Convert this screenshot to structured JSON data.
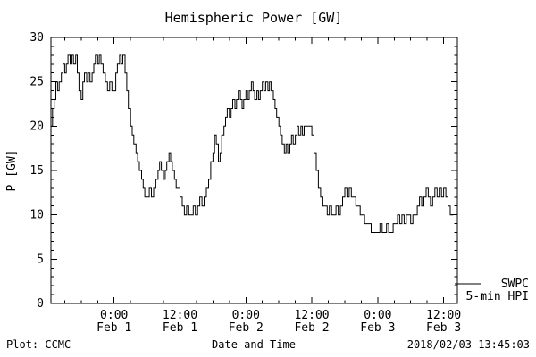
{
  "title": "Hemispheric Power [GW]",
  "legend": {
    "line1": "SWPC",
    "line2": "5-min HPI"
  },
  "footer": {
    "left": "Plot: CCMC",
    "center": "Date and Time",
    "right": "2018/02/03 13:45:03"
  },
  "chart_data": {
    "type": "line",
    "title": "Hemispheric Power [GW]",
    "xlabel": "Date and Time",
    "ylabel": "P [GW]",
    "legend_entries": [
      "SWPC",
      "5-min HPI"
    ],
    "legend_position": "right-outside",
    "grid": false,
    "x_unit": "hours relative to 2018-02-01 00:00 UT",
    "xlim": [
      -11.5,
      62.5
    ],
    "ylim": [
      0,
      30
    ],
    "yticks": [
      0,
      5,
      10,
      15,
      20,
      25,
      30
    ],
    "xticks": [
      {
        "t": 0,
        "time": "0:00",
        "date": "Feb 1"
      },
      {
        "t": 12,
        "time": "12:00",
        "date": "Feb 1"
      },
      {
        "t": 24,
        "time": "0:00",
        "date": "Feb 2"
      },
      {
        "t": 36,
        "time": "12:00",
        "date": "Feb 2"
      },
      {
        "t": 48,
        "time": "0:00",
        "date": "Feb 3"
      },
      {
        "t": 60,
        "time": "12:00",
        "date": "Feb 3"
      }
    ],
    "series": [
      {
        "name": "SWPC 5-min HPI",
        "points": [
          [
            -11.5,
            20
          ],
          [
            -11.2,
            22
          ],
          [
            -10.9,
            23
          ],
          [
            -10.6,
            25
          ],
          [
            -10.3,
            24
          ],
          [
            -10.0,
            25
          ],
          [
            -9.6,
            26
          ],
          [
            -9.3,
            27
          ],
          [
            -9.0,
            26
          ],
          [
            -8.7,
            27
          ],
          [
            -8.4,
            28
          ],
          [
            -8.0,
            27
          ],
          [
            -7.7,
            28
          ],
          [
            -7.4,
            27
          ],
          [
            -7.0,
            28
          ],
          [
            -6.7,
            26
          ],
          [
            -6.4,
            24
          ],
          [
            -6.0,
            23
          ],
          [
            -5.7,
            25
          ],
          [
            -5.4,
            26
          ],
          [
            -5.0,
            25
          ],
          [
            -4.7,
            26
          ],
          [
            -4.4,
            25
          ],
          [
            -4.0,
            26
          ],
          [
            -3.7,
            27
          ],
          [
            -3.4,
            28
          ],
          [
            -3.0,
            27
          ],
          [
            -2.7,
            28
          ],
          [
            -2.4,
            27
          ],
          [
            -2.0,
            26
          ],
          [
            -1.6,
            25
          ],
          [
            -1.2,
            24
          ],
          [
            -0.8,
            25
          ],
          [
            -0.4,
            24
          ],
          [
            0.0,
            24
          ],
          [
            0.3,
            26
          ],
          [
            0.6,
            27
          ],
          [
            1.0,
            28
          ],
          [
            1.3,
            27
          ],
          [
            1.6,
            28
          ],
          [
            2.0,
            26
          ],
          [
            2.3,
            24
          ],
          [
            2.6,
            22
          ],
          [
            3.0,
            20
          ],
          [
            3.3,
            19
          ],
          [
            3.6,
            18
          ],
          [
            4.0,
            17
          ],
          [
            4.3,
            16
          ],
          [
            4.6,
            15
          ],
          [
            5.0,
            14
          ],
          [
            5.3,
            13
          ],
          [
            5.6,
            12
          ],
          [
            6.0,
            12
          ],
          [
            6.4,
            13
          ],
          [
            6.8,
            12
          ],
          [
            7.2,
            13
          ],
          [
            7.6,
            14
          ],
          [
            8.0,
            15
          ],
          [
            8.3,
            16
          ],
          [
            8.6,
            15
          ],
          [
            9.0,
            14
          ],
          [
            9.3,
            15
          ],
          [
            9.6,
            16
          ],
          [
            10.0,
            17
          ],
          [
            10.3,
            16
          ],
          [
            10.6,
            15
          ],
          [
            11.0,
            14
          ],
          [
            11.3,
            13
          ],
          [
            11.6,
            13
          ],
          [
            12.0,
            12
          ],
          [
            12.4,
            11
          ],
          [
            12.8,
            10
          ],
          [
            13.2,
            11
          ],
          [
            13.6,
            10
          ],
          [
            14.0,
            10
          ],
          [
            14.4,
            11
          ],
          [
            14.8,
            10
          ],
          [
            15.2,
            11
          ],
          [
            15.6,
            12
          ],
          [
            16.0,
            11
          ],
          [
            16.4,
            12
          ],
          [
            16.8,
            13
          ],
          [
            17.2,
            14
          ],
          [
            17.6,
            16
          ],
          [
            18.0,
            17
          ],
          [
            18.3,
            19
          ],
          [
            18.6,
            18
          ],
          [
            19.0,
            16
          ],
          [
            19.3,
            17
          ],
          [
            19.6,
            19
          ],
          [
            20.0,
            20
          ],
          [
            20.3,
            21
          ],
          [
            20.6,
            22
          ],
          [
            21.0,
            21
          ],
          [
            21.3,
            22
          ],
          [
            21.6,
            23
          ],
          [
            22.0,
            22
          ],
          [
            22.3,
            23
          ],
          [
            22.6,
            24
          ],
          [
            23.0,
            23
          ],
          [
            23.3,
            22
          ],
          [
            23.6,
            23
          ],
          [
            24.0,
            24
          ],
          [
            24.3,
            23
          ],
          [
            24.6,
            24
          ],
          [
            25.0,
            25
          ],
          [
            25.3,
            24
          ],
          [
            25.6,
            23
          ],
          [
            26.0,
            24
          ],
          [
            26.3,
            23
          ],
          [
            26.6,
            24
          ],
          [
            27.0,
            25
          ],
          [
            27.3,
            24
          ],
          [
            27.6,
            25
          ],
          [
            28.0,
            24
          ],
          [
            28.3,
            25
          ],
          [
            28.6,
            24
          ],
          [
            29.0,
            23
          ],
          [
            29.3,
            22
          ],
          [
            29.6,
            21
          ],
          [
            30.0,
            20
          ],
          [
            30.3,
            19
          ],
          [
            30.6,
            18
          ],
          [
            31.0,
            17
          ],
          [
            31.3,
            18
          ],
          [
            31.6,
            17
          ],
          [
            32.0,
            18
          ],
          [
            32.3,
            19
          ],
          [
            32.6,
            18
          ],
          [
            33.0,
            19
          ],
          [
            33.3,
            20
          ],
          [
            33.6,
            19
          ],
          [
            34.0,
            20
          ],
          [
            34.3,
            19
          ],
          [
            34.6,
            20
          ],
          [
            35.0,
            20
          ],
          [
            35.5,
            20
          ],
          [
            36.0,
            19
          ],
          [
            36.4,
            17
          ],
          [
            36.8,
            15
          ],
          [
            37.2,
            13
          ],
          [
            37.6,
            12
          ],
          [
            38.0,
            11
          ],
          [
            38.4,
            11
          ],
          [
            38.8,
            10
          ],
          [
            39.2,
            11
          ],
          [
            39.6,
            10
          ],
          [
            40.0,
            10
          ],
          [
            40.4,
            11
          ],
          [
            40.8,
            10
          ],
          [
            41.2,
            11
          ],
          [
            41.6,
            12
          ],
          [
            42.0,
            13
          ],
          [
            42.4,
            12
          ],
          [
            42.8,
            13
          ],
          [
            43.2,
            12
          ],
          [
            43.6,
            12
          ],
          [
            44.0,
            11
          ],
          [
            44.4,
            11
          ],
          [
            44.8,
            10
          ],
          [
            45.2,
            10
          ],
          [
            45.6,
            9
          ],
          [
            46.0,
            9
          ],
          [
            46.4,
            9
          ],
          [
            46.8,
            8
          ],
          [
            47.2,
            8
          ],
          [
            47.6,
            8
          ],
          [
            48.0,
            8
          ],
          [
            48.4,
            9
          ],
          [
            48.8,
            8
          ],
          [
            49.2,
            8
          ],
          [
            49.6,
            9
          ],
          [
            50.0,
            8
          ],
          [
            50.4,
            8
          ],
          [
            50.8,
            9
          ],
          [
            51.2,
            9
          ],
          [
            51.6,
            10
          ],
          [
            52.0,
            9
          ],
          [
            52.4,
            10
          ],
          [
            52.8,
            9
          ],
          [
            53.2,
            10
          ],
          [
            53.6,
            10
          ],
          [
            54.0,
            9
          ],
          [
            54.4,
            10
          ],
          [
            54.8,
            10
          ],
          [
            55.2,
            11
          ],
          [
            55.6,
            12
          ],
          [
            56.0,
            11
          ],
          [
            56.4,
            12
          ],
          [
            56.8,
            13
          ],
          [
            57.2,
            12
          ],
          [
            57.6,
            11
          ],
          [
            58.0,
            12
          ],
          [
            58.4,
            13
          ],
          [
            58.8,
            12
          ],
          [
            59.2,
            13
          ],
          [
            59.6,
            12
          ],
          [
            60.0,
            13
          ],
          [
            60.4,
            12
          ],
          [
            60.8,
            11
          ],
          [
            61.2,
            10
          ],
          [
            61.6,
            10
          ],
          [
            61.75,
            10
          ]
        ]
      }
    ]
  }
}
